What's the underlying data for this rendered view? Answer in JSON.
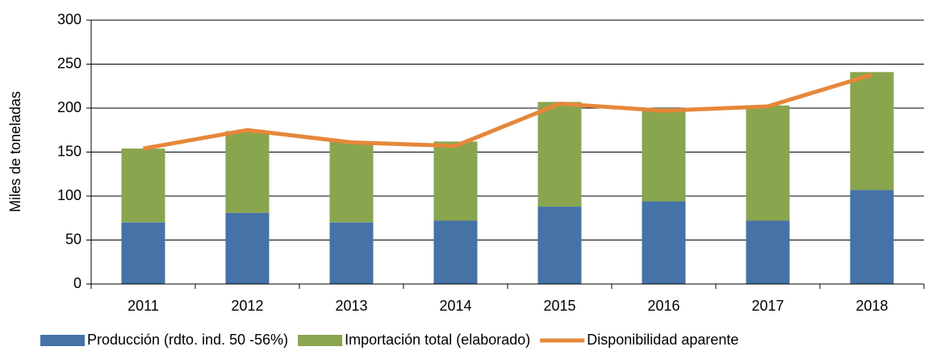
{
  "chart_data": {
    "type": "stacked_bar_line",
    "y_label": "Miles de toneladas",
    "categories": [
      "2011",
      "2012",
      "2013",
      "2014",
      "2015",
      "2016",
      "2017",
      "2018"
    ],
    "series": [
      {
        "name": "Producción (rdto. ind. 50 -56%)",
        "type": "bar",
        "color": "#4572a7",
        "values": [
          70,
          81,
          70,
          72,
          88,
          94,
          72,
          107
        ]
      },
      {
        "name": "Importación total (elaborado)",
        "type": "bar",
        "color": "#89a54e",
        "values": [
          84,
          93,
          92,
          90,
          119,
          106,
          131,
          134
        ]
      },
      {
        "name": "Disponibilidad aparente",
        "type": "line",
        "color": "#e6873a",
        "values": [
          154,
          175,
          161,
          157,
          205,
          197,
          202,
          238
        ]
      }
    ],
    "ylim": [
      0,
      300
    ],
    "yticks": [
      0,
      50,
      100,
      150,
      200,
      250,
      300
    ],
    "grid": true,
    "legend": "bottom"
  }
}
